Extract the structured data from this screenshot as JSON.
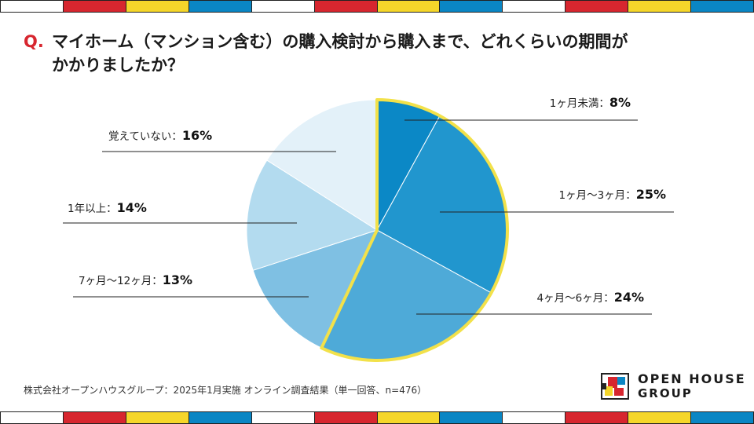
{
  "stripe_colors": [
    "#ffffff",
    "#d7262f",
    "#f5d62a",
    "#0a86c4",
    "#ffffff",
    "#d7262f",
    "#f5d62a",
    "#0a86c4",
    "#ffffff",
    "#d7262f",
    "#f5d62a",
    "#0a86c4"
  ],
  "question": {
    "mark": "Q.",
    "text_line1": "マイホーム（マンション含む）の購入検討から購入まで、どれくらいの期間が",
    "text_line2": "かかりましたか？"
  },
  "chart_data": {
    "type": "pie",
    "title": "マイホーム（マンション含む）の購入検討から購入まで、どれくらいの期間がかかりましたか？",
    "unit": "%",
    "highlight": "#f2e14a",
    "slices": [
      {
        "label": "1ヶ月未満",
        "value": 8,
        "display": "8%",
        "color": "#0b88c6"
      },
      {
        "label": "1ヶ月〜3ヶ月",
        "value": 25,
        "display": "25%",
        "color": "#2196ce"
      },
      {
        "label": "4ヶ月〜6ヶ月",
        "value": 24,
        "display": "24%",
        "color": "#4eaad8"
      },
      {
        "label": "7ヶ月〜12ヶ月",
        "value": 13,
        "display": "13%",
        "color": "#7fc0e3"
      },
      {
        "label": "1年以上",
        "value": 14,
        "display": "14%",
        "color": "#b3dbef"
      },
      {
        "label": "覚えていない",
        "value": 16,
        "display": "16%",
        "color": "#e3f1f9"
      }
    ]
  },
  "footnote": "株式会社オープンハウスグループ：2025年1月実施 オンライン調査結果（単一回答、n=476）",
  "logo": {
    "line1": "OPEN HOUSE",
    "line2": "GROUP"
  }
}
